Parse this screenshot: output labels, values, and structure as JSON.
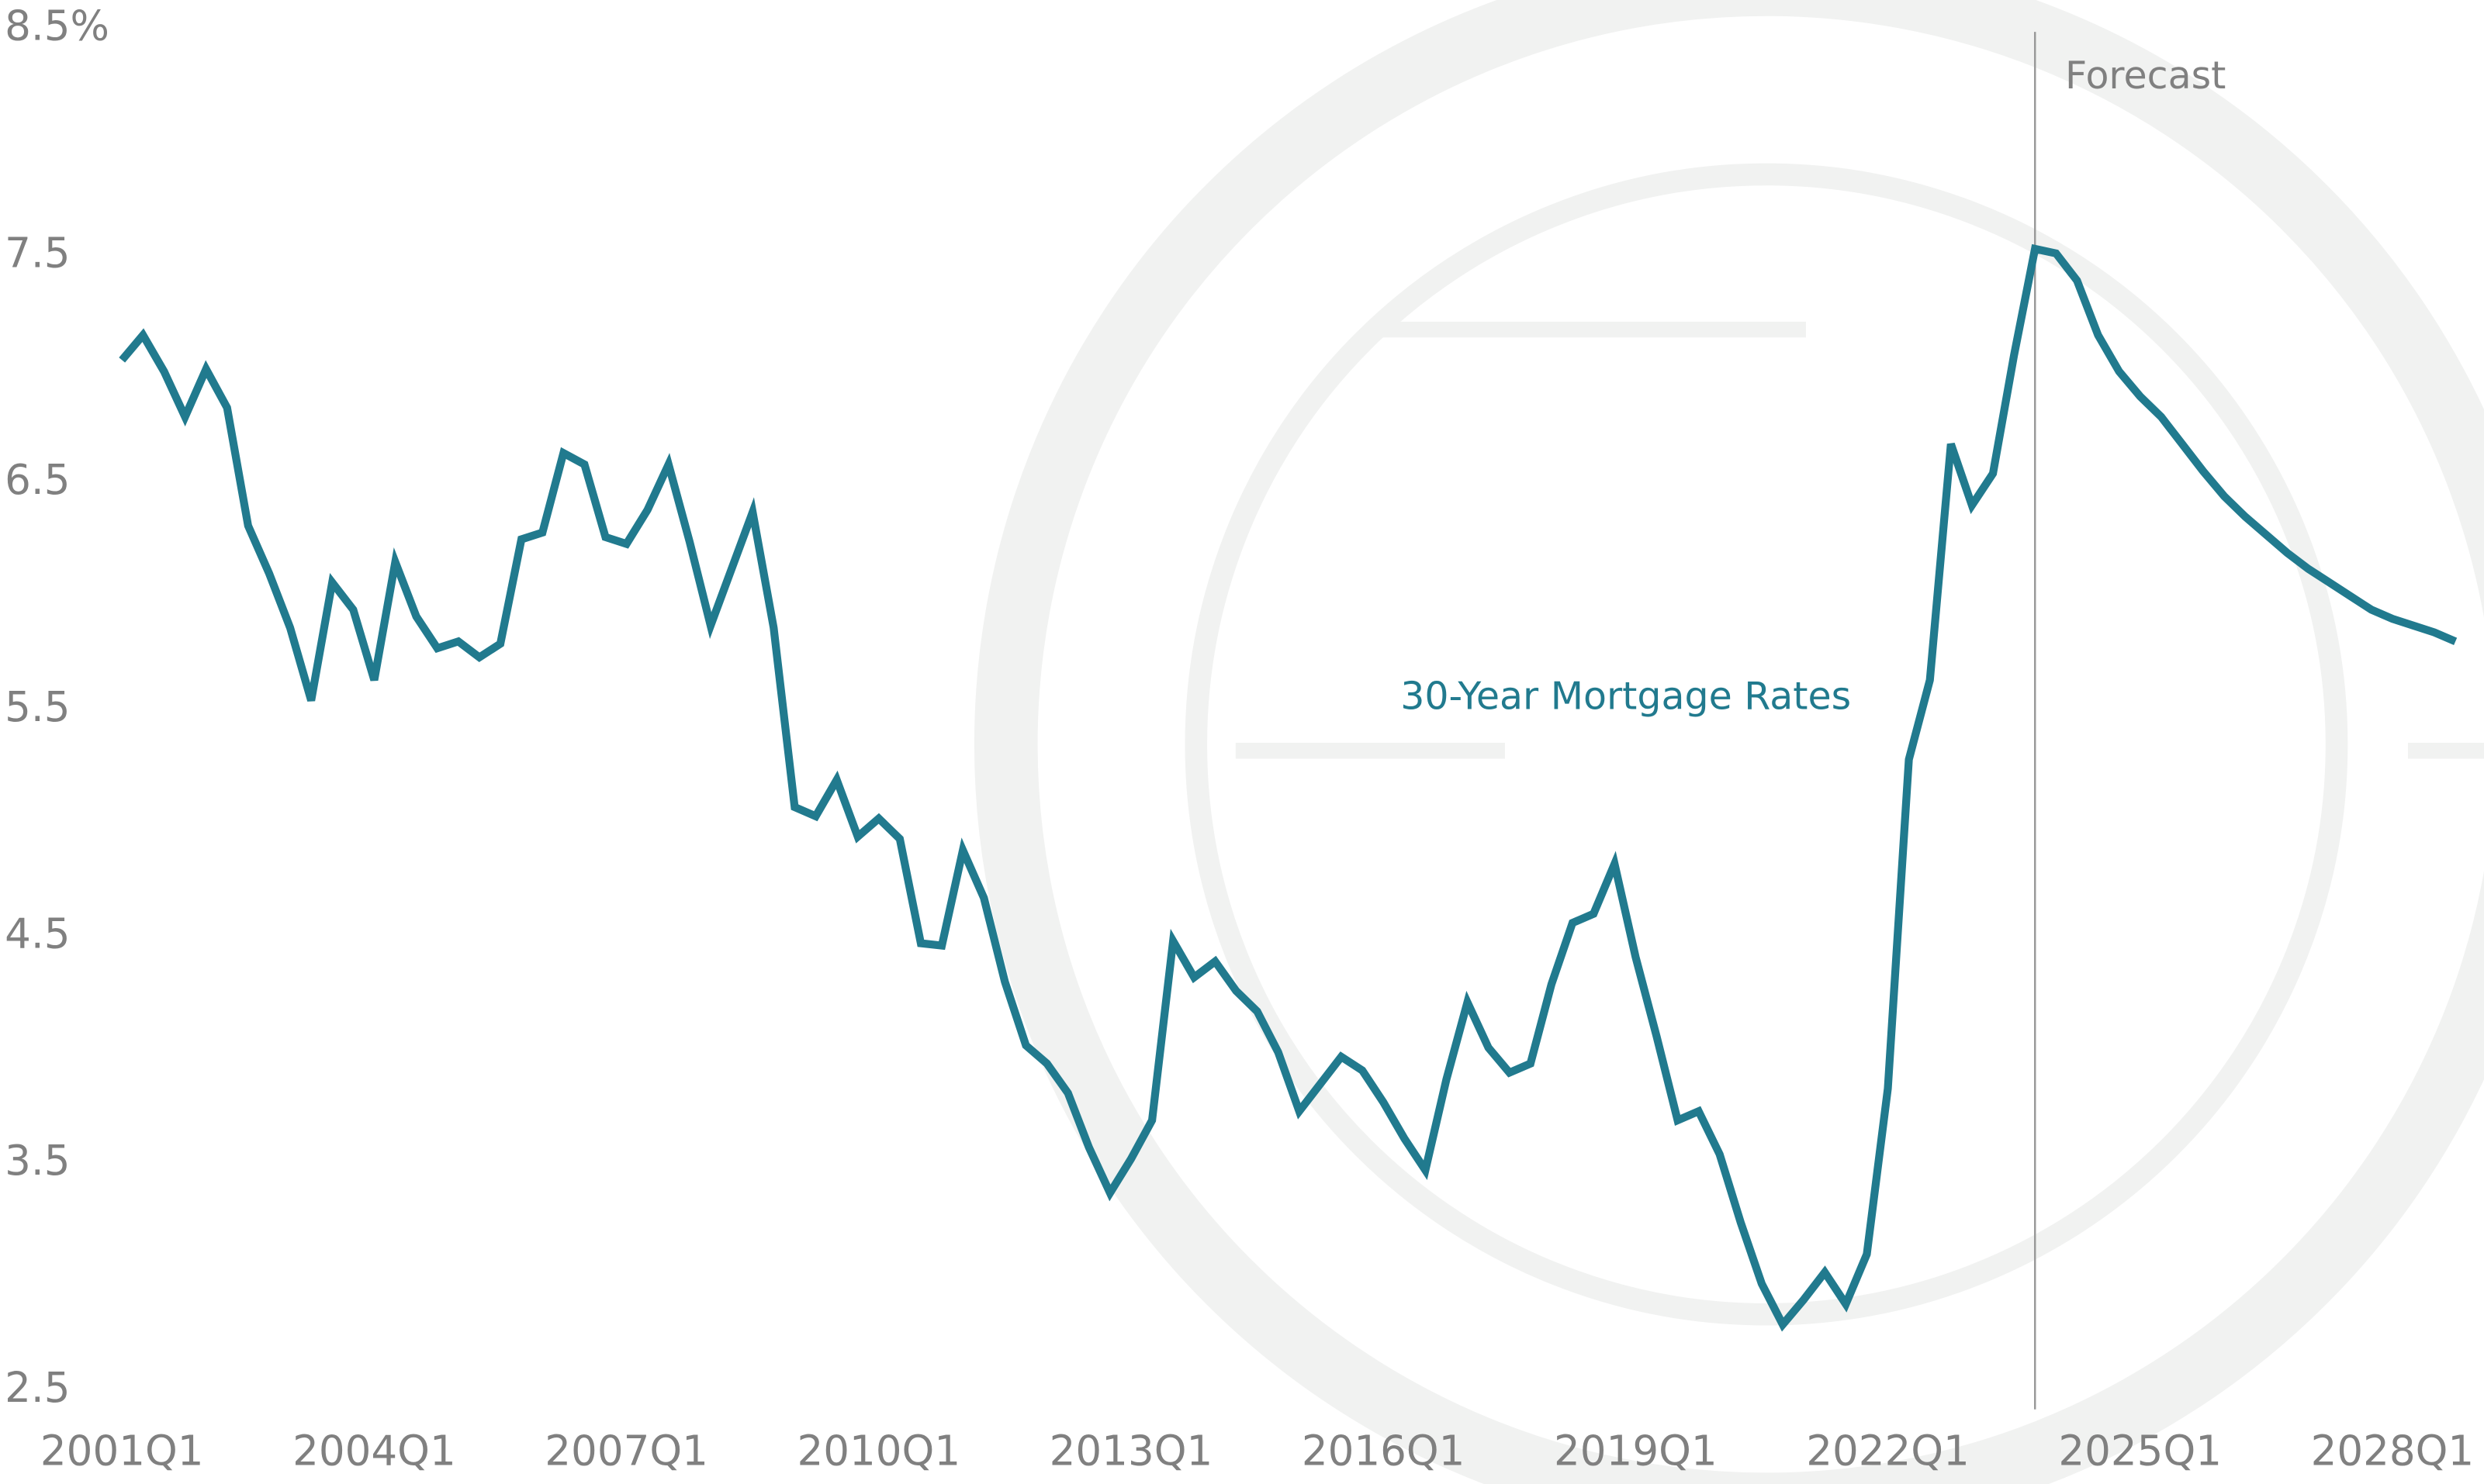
{
  "chart_data": {
    "type": "line",
    "categories": [
      "2001Q1",
      null,
      null,
      null,
      null,
      null,
      null,
      null,
      null,
      null,
      null,
      null,
      "2004Q1",
      null,
      null,
      null,
      null,
      null,
      null,
      null,
      null,
      null,
      null,
      null,
      "2007Q1",
      null,
      null,
      null,
      null,
      null,
      null,
      null,
      null,
      null,
      null,
      null,
      "2010Q1",
      null,
      null,
      null,
      null,
      null,
      null,
      null,
      null,
      null,
      null,
      null,
      "2013Q1",
      null,
      null,
      null,
      null,
      null,
      null,
      null,
      null,
      null,
      null,
      null,
      "2016Q1",
      null,
      null,
      null,
      null,
      null,
      null,
      null,
      null,
      null,
      null,
      null,
      "2019Q1",
      null,
      null,
      null,
      null,
      null,
      null,
      null,
      null,
      null,
      null,
      null,
      "2022Q1",
      null,
      null,
      null,
      null,
      null,
      null,
      null,
      null,
      null,
      null,
      null,
      "2025Q1",
      null,
      null,
      null,
      null,
      null,
      null,
      null,
      null,
      null,
      null,
      null,
      "2028Q1",
      null,
      null,
      null
    ],
    "series": [
      {
        "name": "30-Year Mortgage Rates",
        "color": "#217a8e",
        "values": [
          7.04,
          7.15,
          6.99,
          6.79,
          7.0,
          6.83,
          6.31,
          6.1,
          5.86,
          5.54,
          6.06,
          5.94,
          5.63,
          6.15,
          5.91,
          5.77,
          5.8,
          5.73,
          5.79,
          6.25,
          6.28,
          6.63,
          6.58,
          6.26,
          6.23,
          6.38,
          6.58,
          6.24,
          5.87,
          6.12,
          6.37,
          5.86,
          5.07,
          5.03,
          5.19,
          4.94,
          5.02,
          4.93,
          4.47,
          4.46,
          4.88,
          4.67,
          4.3,
          4.02,
          3.94,
          3.81,
          3.57,
          3.37,
          3.52,
          3.69,
          4.48,
          4.32,
          4.39,
          4.26,
          4.17,
          3.99,
          3.73,
          3.85,
          3.97,
          3.91,
          3.77,
          3.61,
          3.47,
          3.87,
          4.21,
          4.01,
          3.9,
          3.94,
          4.29,
          4.56,
          4.6,
          4.82,
          4.41,
          4.06,
          3.69,
          3.73,
          3.54,
          3.24,
          2.97,
          2.79,
          2.9,
          3.02,
          2.88,
          3.1,
          3.83,
          5.28,
          5.63,
          6.67,
          6.4,
          6.54,
          7.06,
          7.53,
          7.51,
          7.39,
          7.15,
          6.99,
          6.88,
          6.79,
          6.67,
          6.55,
          6.44,
          6.35,
          6.27,
          6.19,
          6.12,
          6.06,
          6.0,
          5.94,
          5.9,
          5.87,
          5.84,
          5.8
        ]
      }
    ],
    "ylim": [
      2.5,
      8.5
    ],
    "yticks": [
      2.5,
      3.5,
      4.5,
      5.5,
      6.5,
      7.5,
      {
        "value": 8.5,
        "label": "8.5%"
      }
    ],
    "annotations": [
      {
        "text": "Forecast",
        "at": 91
      }
    ]
  }
}
